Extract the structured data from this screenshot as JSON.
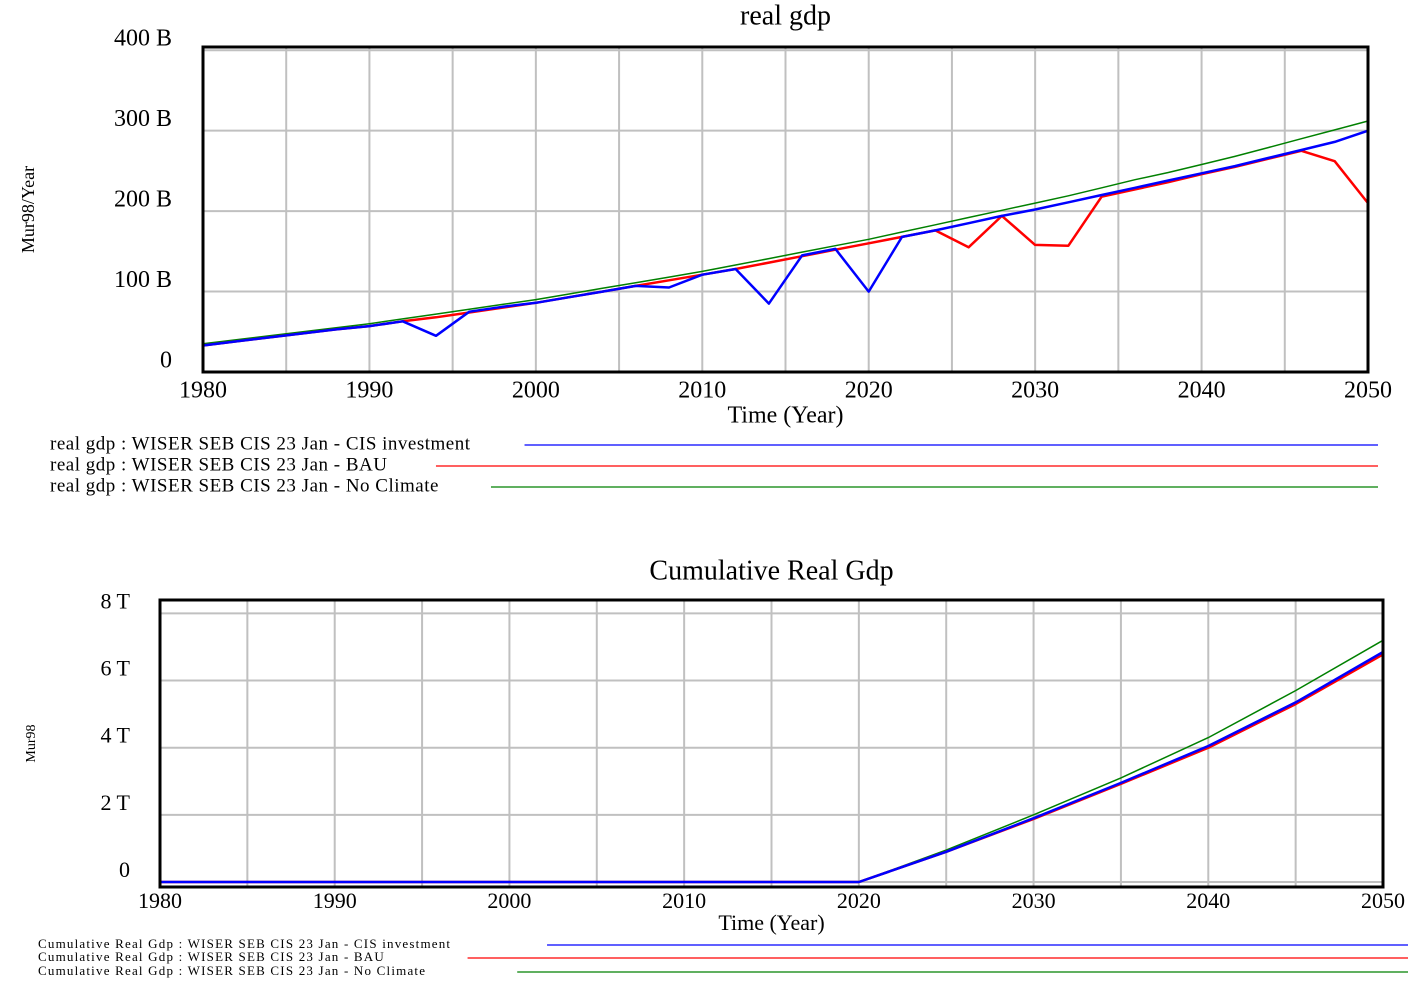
{
  "chart_data": [
    {
      "type": "line",
      "title": "real gdp",
      "y_label": "Mur98/Year",
      "x_label": "Time (Year)",
      "x": [
        1980,
        1982,
        1984,
        1986,
        1988,
        1990,
        1992,
        1994,
        1996,
        1998,
        2000,
        2002,
        2004,
        2006,
        2008,
        2010,
        2012,
        2014,
        2016,
        2018,
        2020,
        2022,
        2024,
        2026,
        2028,
        2030,
        2032,
        2034,
        2036,
        2038,
        2040,
        2042,
        2044,
        2046,
        2048,
        2050
      ],
      "xlim": [
        1980,
        2050
      ],
      "xticks": [
        1980,
        1990,
        2000,
        2010,
        2020,
        2030,
        2040,
        2050
      ],
      "xminor": [
        1985,
        1995,
        2005,
        2015,
        2025,
        2035,
        2045
      ],
      "ylim": [
        0,
        404
      ],
      "yticks": [
        0,
        {
          "value": 100,
          "label": "100 B"
        },
        {
          "value": 200,
          "label": "200 B"
        },
        {
          "value": 300,
          "label": "300 B"
        },
        {
          "value": 400,
          "label": "400 B"
        }
      ],
      "grid": true,
      "series": [
        {
          "name": "real gdp : WISER SEB CIS 23 Jan - CIS investment",
          "color": "#0000ff",
          "values": [
            33,
            38,
            43,
            48,
            53,
            57,
            63,
            45,
            75,
            81,
            86,
            93,
            100,
            107,
            105,
            121,
            128,
            85,
            145,
            153,
            100,
            168,
            176,
            185,
            194,
            202,
            211,
            220,
            229,
            238,
            247,
            256,
            266,
            276,
            286,
            300
          ]
        },
        {
          "name": "real gdp : WISER SEB CIS 23 Jan - BAU",
          "color": "#ff0000",
          "values": [
            33,
            38,
            43,
            48,
            53,
            57,
            63,
            68,
            74,
            80,
            86,
            93,
            100,
            107,
            114,
            121,
            128,
            136,
            144,
            152,
            160,
            168,
            176,
            155,
            194,
            158,
            157,
            218,
            227,
            236,
            246,
            255,
            265,
            275,
            262,
            210
          ]
        },
        {
          "name": "real gdp : WISER SEB CIS 23 Jan - No Climate",
          "color": "#008000",
          "values": [
            35,
            40,
            45,
            50,
            55,
            60,
            66,
            72,
            78,
            84,
            90,
            97,
            104,
            111,
            118,
            125,
            133,
            141,
            149,
            157,
            165,
            174,
            183,
            192,
            201,
            210,
            219,
            229,
            239,
            248,
            258,
            268,
            279,
            290,
            301,
            312
          ]
        }
      ]
    },
    {
      "type": "line",
      "title": "Cumulative Real Gdp",
      "y_label": "Mur98",
      "x_label": "Time (Year)",
      "x": [
        1980,
        2020,
        2025,
        2030,
        2035,
        2040,
        2045,
        2050
      ],
      "xlim": [
        1980,
        2050
      ],
      "xticks": [
        1980,
        1990,
        2000,
        2010,
        2020,
        2030,
        2040,
        2050
      ],
      "xminor": [
        1985,
        1995,
        2005,
        2015,
        2025,
        2035,
        2045
      ],
      "ylim": [
        -0.15,
        8.4
      ],
      "yticks": [
        0,
        {
          "value": 2,
          "label": "2 T"
        },
        {
          "value": 4,
          "label": "4 T"
        },
        {
          "value": 6,
          "label": "6 T"
        },
        {
          "value": 8,
          "label": "8 T"
        }
      ],
      "grid": true,
      "series": [
        {
          "name": "Cumulative Real Gdp : WISER SEB CIS 23 Jan - CIS investment",
          "color": "#0000ff",
          "values": [
            0,
            0,
            0.9,
            1.9,
            2.95,
            4.05,
            5.35,
            6.85
          ]
        },
        {
          "name": "Cumulative Real Gdp : WISER SEB CIS 23 Jan - BAU",
          "color": "#ff0000",
          "values": [
            0,
            0,
            0.9,
            1.88,
            2.92,
            4.0,
            5.3,
            6.78
          ]
        },
        {
          "name": "Cumulative Real Gdp : WISER SEB CIS 23 Jan - No Climate",
          "color": "#008000",
          "values": [
            0,
            0,
            0.95,
            2.0,
            3.1,
            4.3,
            5.7,
            7.2
          ]
        }
      ]
    }
  ]
}
